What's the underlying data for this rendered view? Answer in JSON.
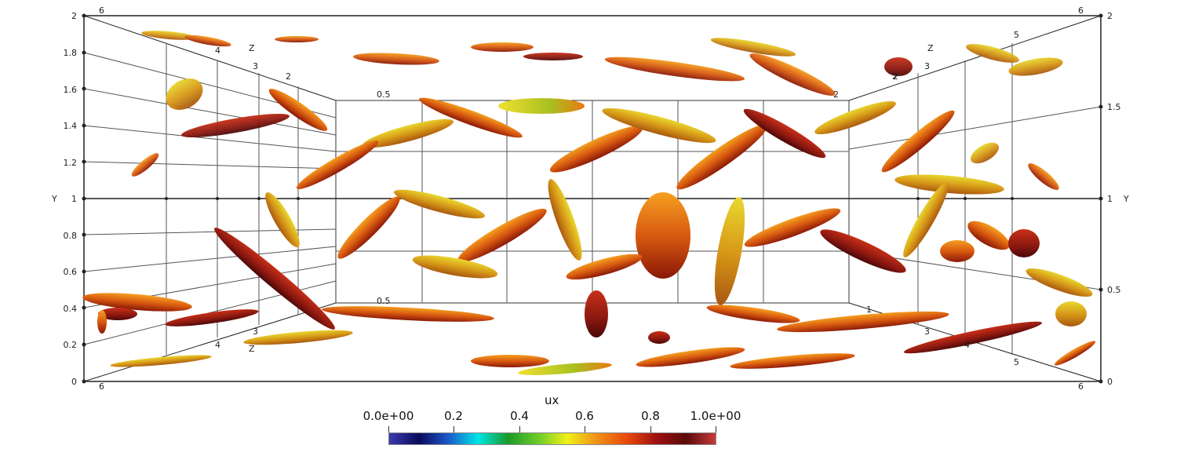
{
  "scene": {
    "y_axis_letter": "Y",
    "z_axis_letter": "Z",
    "left_y_ticks": [
      "0",
      "0.2",
      "0.4",
      "0.6",
      "0.8",
      "1",
      "1.2",
      "1.4",
      "1.6",
      "1.8",
      "2"
    ],
    "right_y_ticks": [
      "0",
      "0.5",
      "1",
      "1.5",
      "2"
    ],
    "corner_labels": [
      "6",
      "6",
      "6",
      "6"
    ],
    "z_ticks_top_left": [
      "4",
      "3",
      "2"
    ],
    "z_ticks_bottom_left": [
      "3",
      "4"
    ],
    "z_ticks_top_right": [
      "2",
      "3",
      "5"
    ],
    "z_ticks_bottom_right": [
      "3",
      "4",
      "5"
    ],
    "inner_marks": [
      "0.5",
      "0.5",
      "2",
      "2",
      "1"
    ]
  },
  "colorbar": {
    "title": "ux",
    "tick_labels": [
      "0.0e+00",
      "0.2",
      "0.4",
      "0.6",
      "0.8",
      "1.0e+00"
    ],
    "range": [
      0,
      1
    ],
    "colormap": [
      "#3b3ab0",
      "#0a0a5c",
      "#1a5acb",
      "#00e5e5",
      "#1a9a2a",
      "#6acb2a",
      "#f0f018",
      "#f09018",
      "#e84a0a",
      "#a01010",
      "#5a0a0a",
      "#c83a3a"
    ]
  }
}
